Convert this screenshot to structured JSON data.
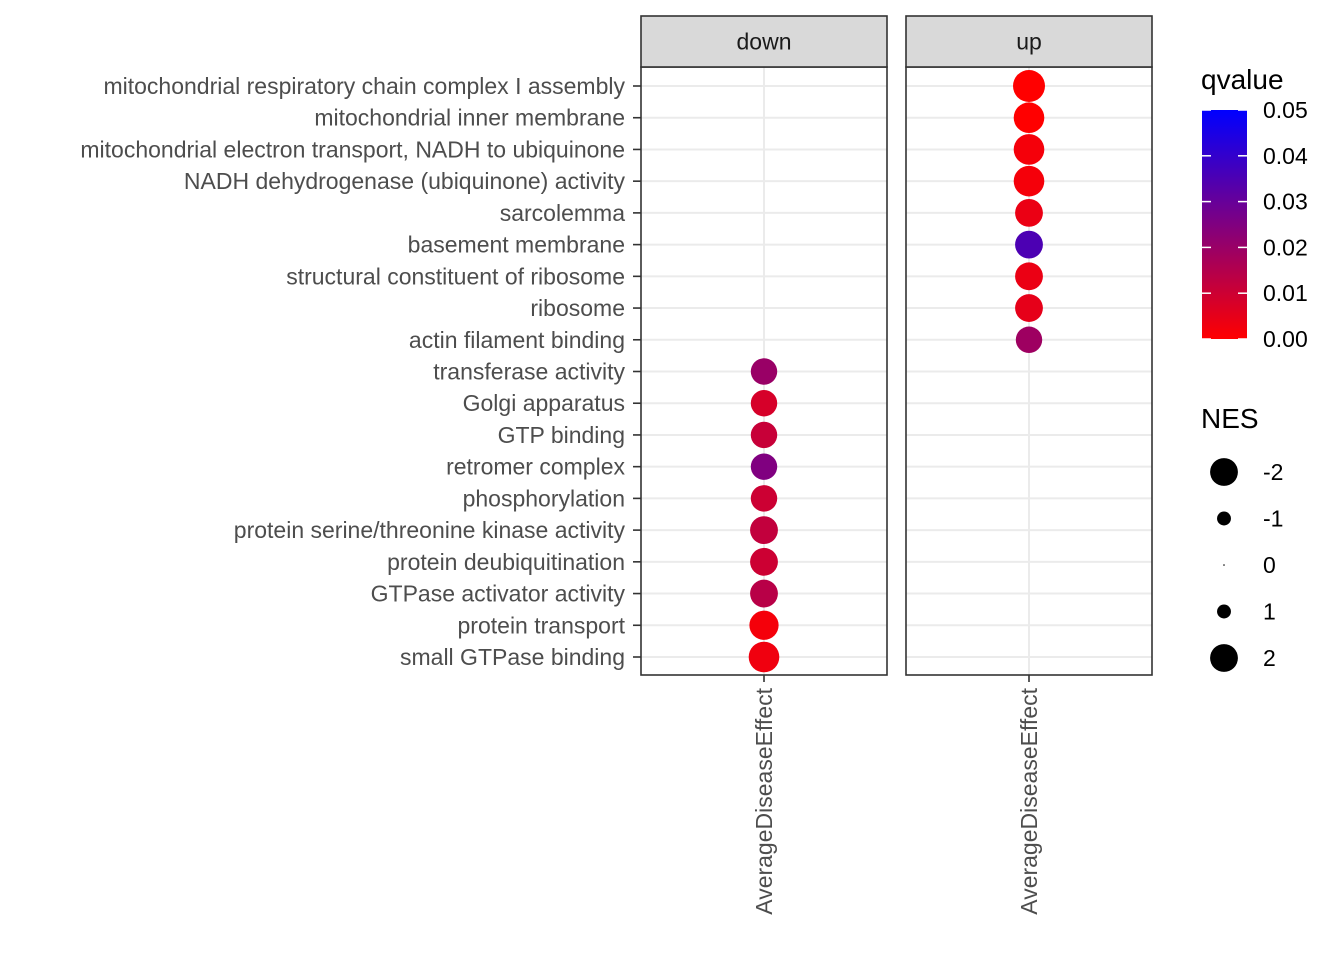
{
  "chart_data": {
    "type": "dot-facet",
    "facets": [
      "down",
      "up"
    ],
    "x_category": "AverageDiseaseEffect",
    "terms": [
      "mitochondrial respiratory chain complex I assembly",
      "mitochondrial inner membrane",
      "mitochondrial electron transport, NADH to ubiquinone",
      "NADH dehydrogenase (ubiquinone) activity",
      "sarcolemma",
      "basement membrane",
      "structural constituent of ribosome",
      "ribosome",
      "actin filament binding",
      "transferase activity",
      "Golgi apparatus",
      "GTP binding",
      "retromer complex",
      "phosphorylation",
      "protein serine/threonine kinase activity",
      "protein deubiquitination",
      "GTPase activator activity",
      "protein transport",
      "small GTPase binding"
    ],
    "points": [
      {
        "facet": "up",
        "term": "mitochondrial respiratory chain complex I assembly",
        "nes": 2.3,
        "qvalue": 0.0
      },
      {
        "facet": "up",
        "term": "mitochondrial inner membrane",
        "nes": 2.2,
        "qvalue": 0.0
      },
      {
        "facet": "up",
        "term": "mitochondrial electron transport, NADH to ubiquinone",
        "nes": 2.2,
        "qvalue": 0.002
      },
      {
        "facet": "up",
        "term": "NADH dehydrogenase (ubiquinone) activity",
        "nes": 2.2,
        "qvalue": 0.002
      },
      {
        "facet": "up",
        "term": "sarcolemma",
        "nes": 2.0,
        "qvalue": 0.004
      },
      {
        "facet": "up",
        "term": "basement membrane",
        "nes": 2.0,
        "qvalue": 0.035
      },
      {
        "facet": "up",
        "term": "structural constituent of ribosome",
        "nes": 2.0,
        "qvalue": 0.004
      },
      {
        "facet": "up",
        "term": "ribosome",
        "nes": 2.0,
        "qvalue": 0.005
      },
      {
        "facet": "up",
        "term": "actin filament binding",
        "nes": 1.9,
        "qvalue": 0.019
      },
      {
        "facet": "down",
        "term": "transferase activity",
        "nes": -1.9,
        "qvalue": 0.02
      },
      {
        "facet": "down",
        "term": "Golgi apparatus",
        "nes": -1.9,
        "qvalue": 0.008
      },
      {
        "facet": "down",
        "term": "GTP binding",
        "nes": -1.9,
        "qvalue": 0.011
      },
      {
        "facet": "down",
        "term": "retromer complex",
        "nes": -1.9,
        "qvalue": 0.025
      },
      {
        "facet": "down",
        "term": "phosphorylation",
        "nes": -1.9,
        "qvalue": 0.01
      },
      {
        "facet": "down",
        "term": "protein serine/threonine kinase activity",
        "nes": -2.0,
        "qvalue": 0.012
      },
      {
        "facet": "down",
        "term": "protein deubiquitination",
        "nes": -2.0,
        "qvalue": 0.01
      },
      {
        "facet": "down",
        "term": "GTPase activator activity",
        "nes": -2.0,
        "qvalue": 0.014
      },
      {
        "facet": "down",
        "term": "protein transport",
        "nes": -2.1,
        "qvalue": 0.002
      },
      {
        "facet": "down",
        "term": "small GTPase binding",
        "nes": -2.2,
        "qvalue": 0.003
      }
    ],
    "color_legend": {
      "title": "qvalue",
      "labels": [
        "0.05",
        "0.04",
        "0.03",
        "0.02",
        "0.01",
        "0.00"
      ],
      "low_color": "#ff0000",
      "high_color": "#0000ff",
      "range": [
        0,
        0.05
      ]
    },
    "size_legend": {
      "title": "NES",
      "labels": [
        "-2",
        "-1",
        "0",
        "1",
        "2"
      ],
      "values": [
        -2,
        -1,
        0,
        1,
        2
      ]
    }
  }
}
